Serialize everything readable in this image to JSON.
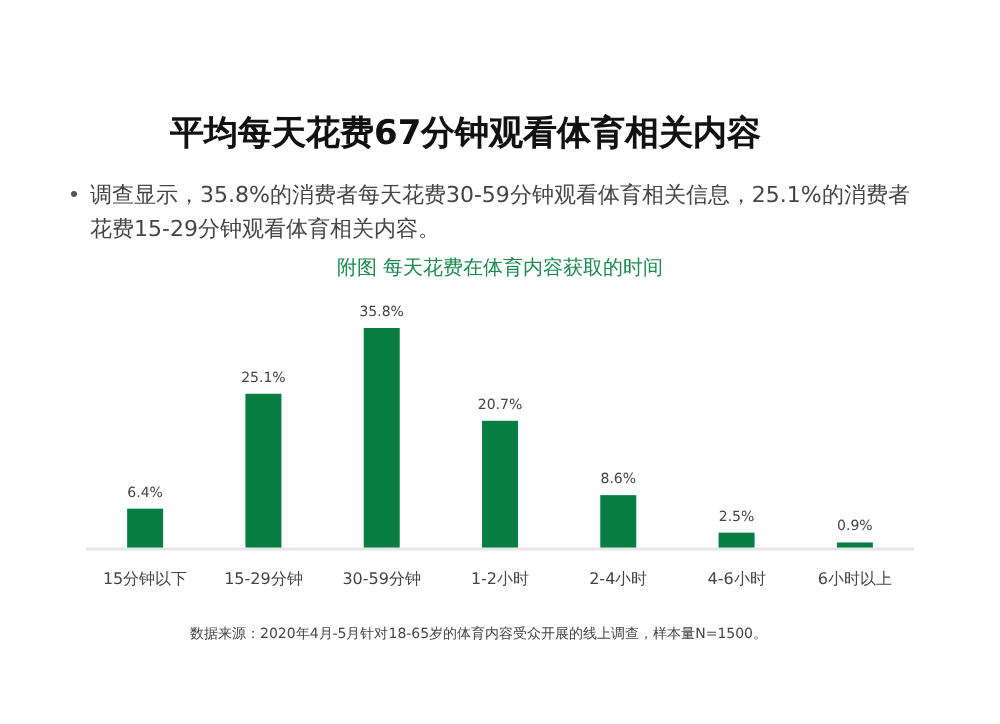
{
  "chart_data": {
    "type": "bar",
    "title": "平均每天花费67分钟观看体育相关内容",
    "subtitle": "调查显示，35.8%的消费者每天花费30-59分钟观看体育相关信息，25.1%的消费者花费15-29分钟观看体育相关内容。",
    "annotations": [
      "附图  每天花费在体育内容获取的时间",
      "数据来源：2020年4月-5月针对18-65岁的体育内容受众开展的线上调查，样本量N=1500。"
    ],
    "categories": [
      "15分钟以下",
      "15-29分钟",
      "30-59分钟",
      "1-2小时",
      "2-4小时",
      "4-6小时",
      "6小时以上"
    ],
    "values": [
      6.4,
      25.1,
      35.8,
      20.7,
      8.6,
      2.5,
      0.9
    ],
    "value_labels": [
      "6.4%",
      "25.1%",
      "35.8%",
      "20.7%",
      "8.6%",
      "2.5%",
      "0.9%"
    ],
    "color": "#087d41"
  }
}
